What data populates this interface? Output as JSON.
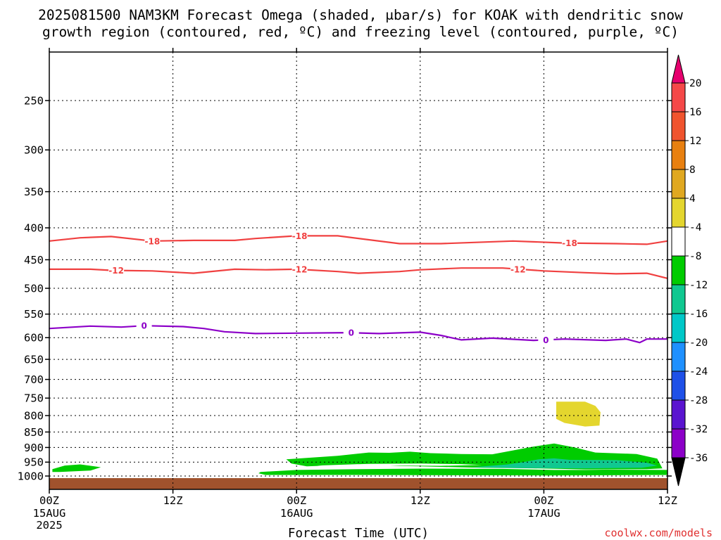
{
  "chart_data": {
    "type": "time-height contour",
    "title_line1": "2025081500 NAM3KM Forecast Omega (shaded, μbar/s) for KOAK with dendritic snow",
    "title_line2": "growth region (contoured, red, ºC) and freezing level (contoured, purple, ºC)",
    "xlabel": "Forecast Time (UTC)",
    "x_ticks": [
      {
        "hour": 0,
        "label": "00Z",
        "sub": [
          "15AUG",
          "2025"
        ]
      },
      {
        "hour": 12,
        "label": "12Z",
        "sub": []
      },
      {
        "hour": 24,
        "label": "00Z",
        "sub": [
          "16AUG"
        ]
      },
      {
        "hour": 36,
        "label": "12Z",
        "sub": []
      },
      {
        "hour": 48,
        "label": "00Z",
        "sub": [
          "17AUG"
        ]
      },
      {
        "hour": 60,
        "label": "12Z",
        "sub": []
      }
    ],
    "xlim": [
      0,
      60
    ],
    "y_ticks": [
      250,
      300,
      350,
      400,
      450,
      500,
      550,
      600,
      650,
      700,
      750,
      800,
      850,
      900,
      950,
      1000
    ],
    "ylim": [
      200,
      1010
    ],
    "y_scale": "log-pressure",
    "grid": true,
    "colorbar": {
      "labels": [
        "20",
        "16",
        "12",
        "8",
        "4",
        "-4",
        "-8",
        "-12",
        "-16",
        "-20",
        "-24",
        "-28",
        "-32",
        "-36"
      ],
      "colors": [
        "#e6006e",
        "#f54848",
        "#f0542e",
        "#e88010",
        "#e0a820",
        "#e4d62e",
        "#ffffff",
        "#00cc00",
        "#10c890",
        "#00c8c8",
        "#1e90ff",
        "#1e50e8",
        "#5a14d0",
        "#8c00c8",
        "#b400b4",
        "#a0a0a0",
        "#000000"
      ],
      "unit": "μbar/s"
    },
    "contours": [
      {
        "name": "-18",
        "color": "#f04040",
        "labels_at_hours": [
          10,
          24.3,
          50.5
        ],
        "points": [
          [
            0,
            420
          ],
          [
            3,
            415
          ],
          [
            6,
            413
          ],
          [
            10,
            420
          ],
          [
            14,
            419
          ],
          [
            18,
            419
          ],
          [
            20,
            416
          ],
          [
            24,
            412
          ],
          [
            28,
            412
          ],
          [
            34,
            424
          ],
          [
            38,
            424
          ],
          [
            45,
            420
          ],
          [
            50,
            423
          ],
          [
            55,
            424
          ],
          [
            58,
            425
          ],
          [
            60,
            420
          ]
        ]
      },
      {
        "name": "-12",
        "color": "#f04040",
        "labels_at_hours": [
          6.5,
          24.3,
          45.5
        ],
        "points": [
          [
            0,
            466
          ],
          [
            4,
            466
          ],
          [
            6,
            468
          ],
          [
            10,
            469
          ],
          [
            14,
            473
          ],
          [
            18,
            466
          ],
          [
            21,
            467
          ],
          [
            24,
            466
          ],
          [
            28,
            470
          ],
          [
            30,
            473
          ],
          [
            34,
            470
          ],
          [
            36,
            467
          ],
          [
            40,
            464
          ],
          [
            44,
            464
          ],
          [
            48,
            469
          ],
          [
            52,
            472
          ],
          [
            55,
            474
          ],
          [
            58,
            473
          ],
          [
            60,
            482
          ]
        ]
      },
      {
        "name": "0",
        "color": "#8c00c8",
        "labels_at_hours": [
          9.2,
          29.3,
          48.2
        ],
        "points": [
          [
            0,
            580
          ],
          [
            4,
            575
          ],
          [
            7,
            577
          ],
          [
            9.2,
            574
          ],
          [
            13,
            576
          ],
          [
            15,
            580
          ],
          [
            17,
            587
          ],
          [
            20,
            591
          ],
          [
            24,
            590
          ],
          [
            29,
            589
          ],
          [
            32,
            591
          ],
          [
            36,
            588
          ],
          [
            38,
            595
          ],
          [
            40,
            605
          ],
          [
            43,
            601
          ],
          [
            47,
            606
          ],
          [
            50,
            603
          ],
          [
            54,
            606
          ],
          [
            56,
            603
          ],
          [
            57.3,
            611
          ],
          [
            58,
            603
          ],
          [
            60,
            603
          ]
        ]
      }
    ],
    "omega_regions": [
      {
        "color": "#00cc00",
        "points": [
          [
            0.3,
            975
          ],
          [
            1.5,
            962
          ],
          [
            3,
            958
          ],
          [
            5,
            968
          ],
          [
            4,
            980
          ],
          [
            1,
            985
          ],
          [
            0.3,
            985
          ]
        ]
      },
      {
        "color": "#00cc00",
        "points": [
          [
            20.5,
            985
          ],
          [
            24,
            978
          ],
          [
            30,
            975
          ],
          [
            36,
            973
          ],
          [
            44,
            974
          ],
          [
            49,
            978
          ],
          [
            52,
            978
          ],
          [
            54,
            977
          ],
          [
            60,
            978
          ],
          [
            60,
            996
          ],
          [
            48,
            998
          ],
          [
            30,
            996
          ],
          [
            21,
            996
          ],
          [
            20.3,
            990
          ]
        ]
      },
      {
        "color": "#00cc00",
        "points": [
          [
            23,
            940
          ],
          [
            28,
            928
          ],
          [
            31,
            917
          ],
          [
            33,
            918
          ],
          [
            35,
            914
          ],
          [
            37,
            919
          ],
          [
            40,
            922
          ],
          [
            43,
            923
          ],
          [
            47,
            897
          ],
          [
            49,
            887
          ],
          [
            51,
            900
          ],
          [
            53,
            917
          ],
          [
            57,
            922
          ],
          [
            59,
            938
          ],
          [
            59.5,
            972
          ],
          [
            58,
            975
          ],
          [
            52,
            976
          ],
          [
            47,
            972
          ],
          [
            42,
            970
          ],
          [
            36,
            965
          ],
          [
            30,
            961
          ],
          [
            27,
            962
          ],
          [
            25,
            965
          ],
          [
            23.5,
            955
          ]
        ]
      },
      {
        "color": "#ffffff",
        "points": [
          [
            26,
            962
          ],
          [
            31,
            956
          ],
          [
            36,
            955
          ],
          [
            40,
            957
          ],
          [
            42,
            960
          ],
          [
            38,
            963
          ],
          [
            34,
            962
          ],
          [
            29,
            967
          ]
        ]
      },
      {
        "color": "#10c890",
        "points": [
          [
            41,
            968
          ],
          [
            44.5,
            958
          ],
          [
            46,
            950
          ],
          [
            47.5,
            940
          ],
          [
            49,
            937
          ],
          [
            50.5,
            942
          ],
          [
            55,
            943
          ],
          [
            58,
            952
          ],
          [
            59,
            962
          ],
          [
            57.5,
            970
          ],
          [
            52,
            972
          ],
          [
            46,
            971
          ]
        ]
      },
      {
        "color": "#e4d62e",
        "points": [
          [
            49.2,
            760
          ],
          [
            52,
            760
          ],
          [
            53,
            772
          ],
          [
            53.5,
            790
          ],
          [
            53.4,
            830
          ],
          [
            52,
            833
          ],
          [
            50,
            822
          ],
          [
            49.2,
            810
          ]
        ]
      }
    ]
  },
  "credit": "coolwx.com/models"
}
